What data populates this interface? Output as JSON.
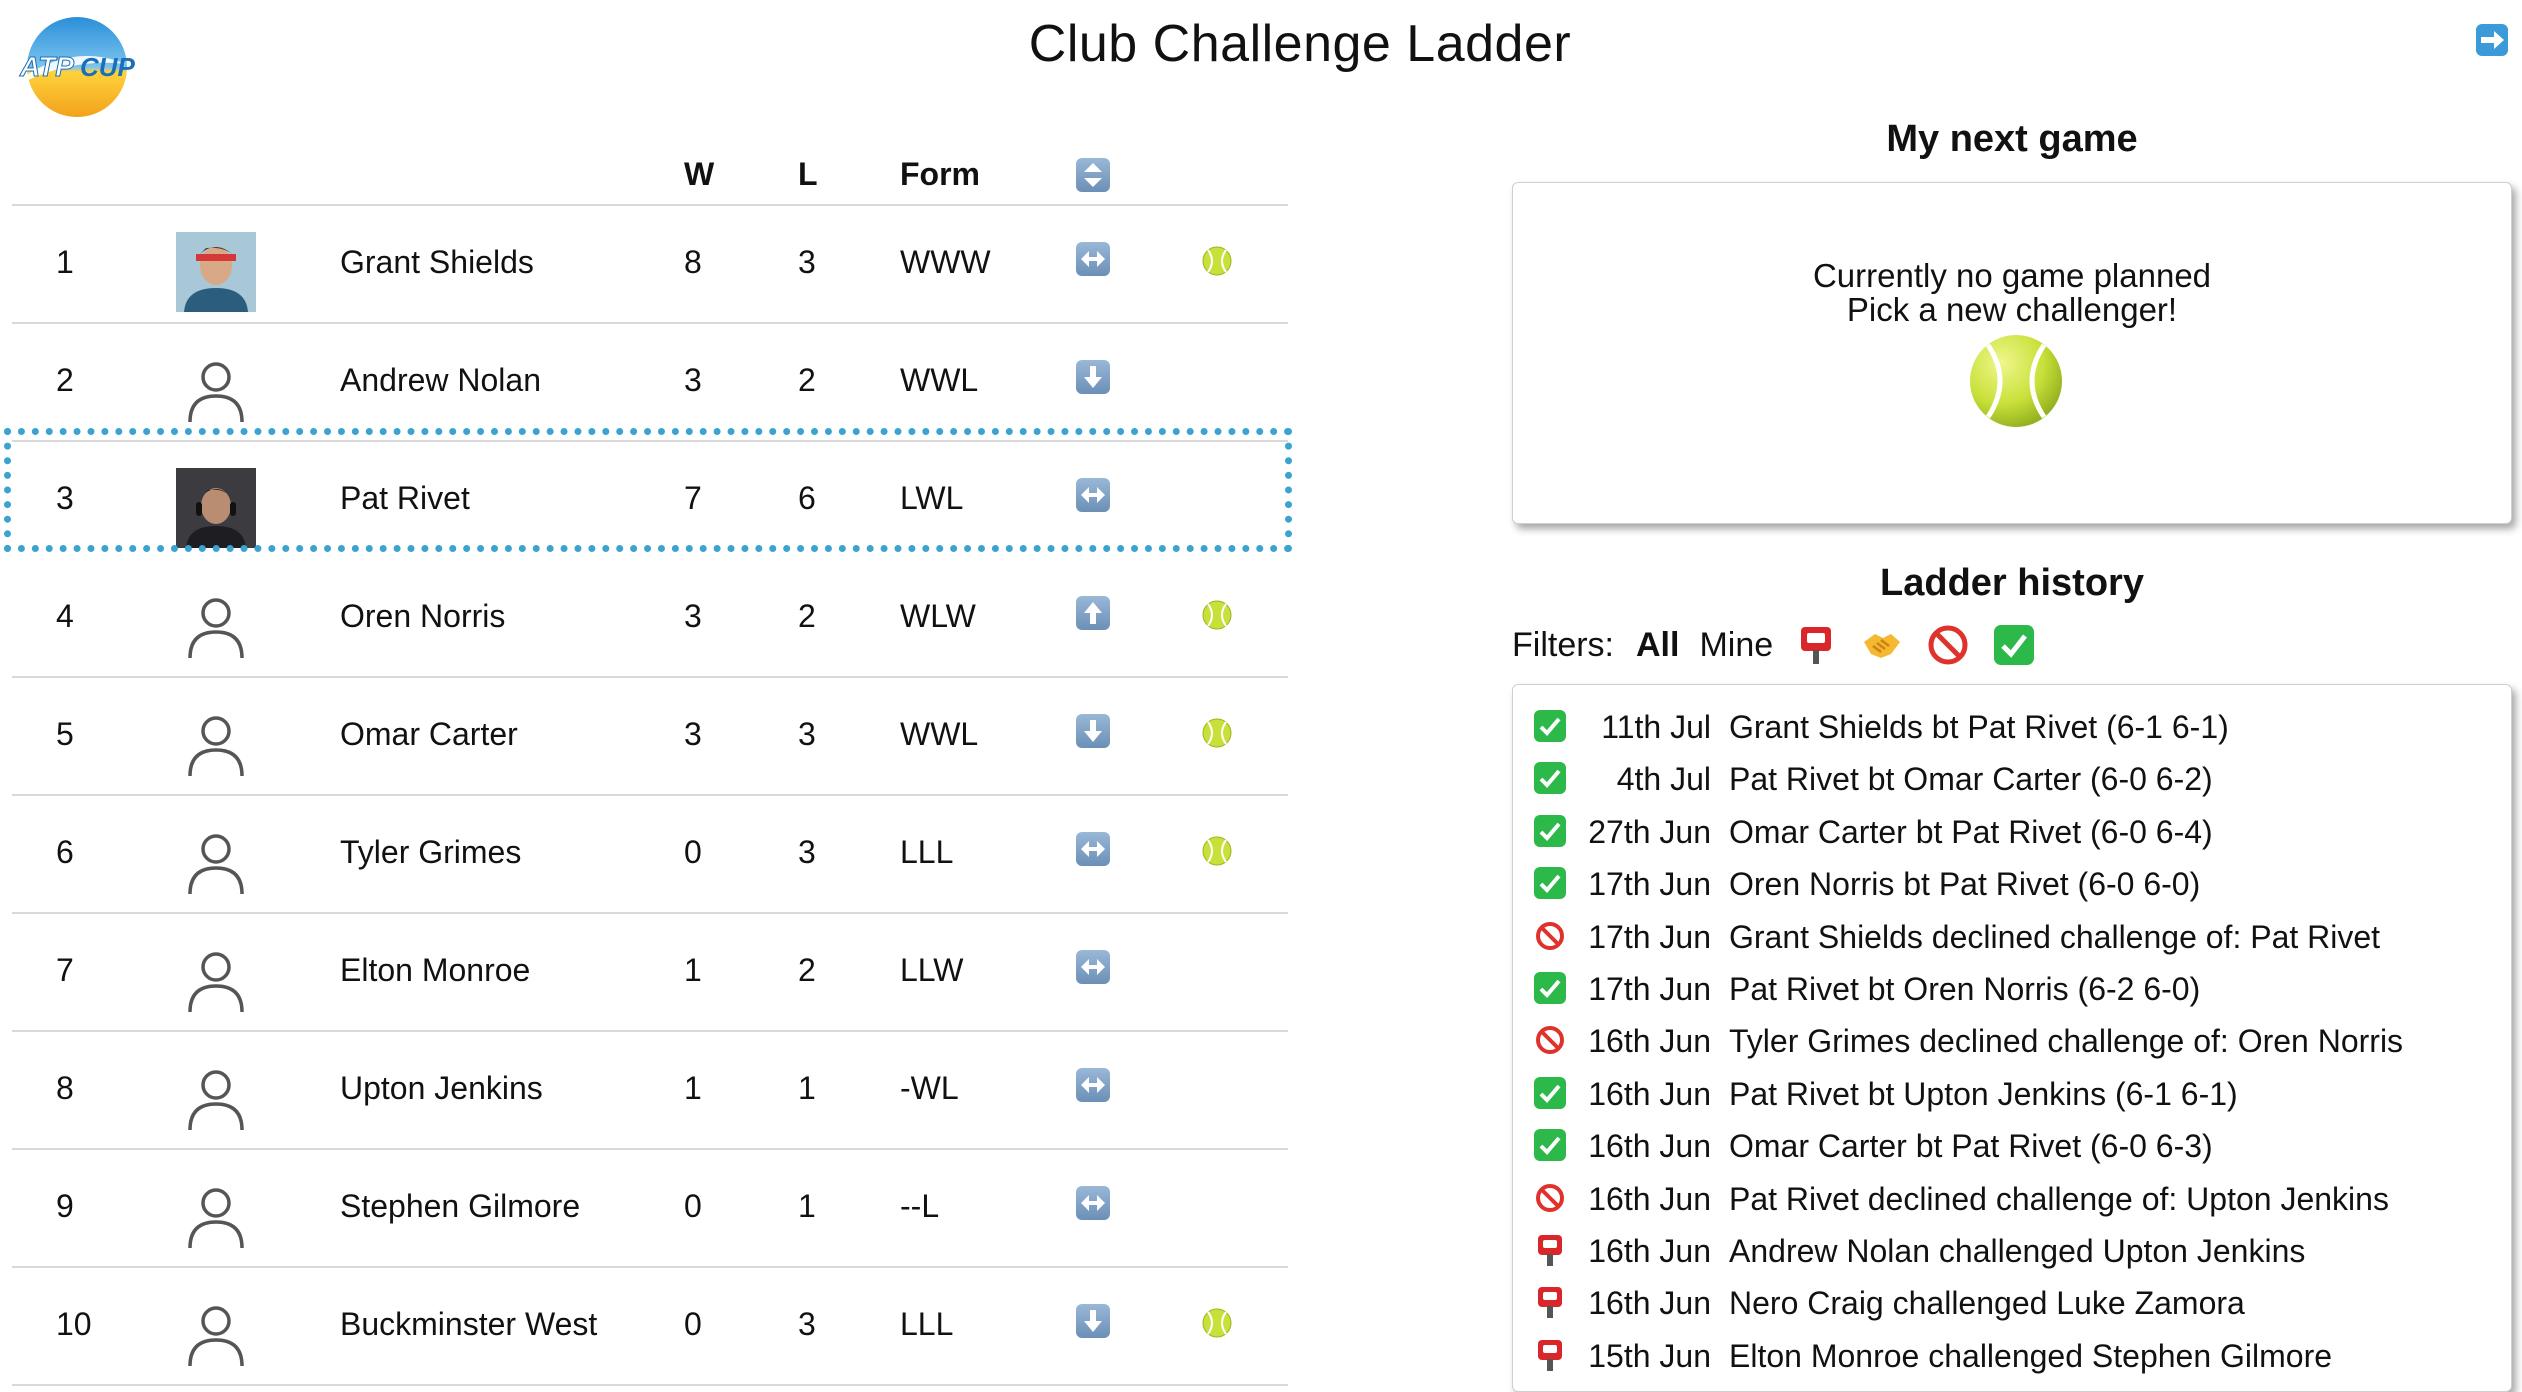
{
  "header": {
    "title": "Club Challenge Ladder",
    "logo_text_atp": "ATP",
    "logo_text_cup": "CUP"
  },
  "ladder": {
    "columns": {
      "w": "W",
      "l": "L",
      "form": "Form"
    },
    "rows": [
      {
        "rank": "1",
        "name": "Grant Shields",
        "w": "8",
        "l": "3",
        "form": "WWW",
        "move": "left-right",
        "avatar": "photo",
        "ball": true
      },
      {
        "rank": "2",
        "name": "Andrew Nolan",
        "w": "3",
        "l": "2",
        "form": "WWL",
        "move": "down",
        "avatar": "person",
        "ball": false
      },
      {
        "rank": "3",
        "name": "Pat Rivet",
        "w": "7",
        "l": "6",
        "form": "LWL",
        "move": "left-right",
        "avatar": "photo",
        "ball": false
      },
      {
        "rank": "4",
        "name": "Oren Norris",
        "w": "3",
        "l": "2",
        "form": "WLW",
        "move": "up",
        "avatar": "person",
        "ball": true
      },
      {
        "rank": "5",
        "name": "Omar Carter",
        "w": "3",
        "l": "3",
        "form": "WWL",
        "move": "down",
        "avatar": "person",
        "ball": true
      },
      {
        "rank": "6",
        "name": "Tyler Grimes",
        "w": "0",
        "l": "3",
        "form": "LLL",
        "move": "left-right",
        "avatar": "person",
        "ball": true
      },
      {
        "rank": "7",
        "name": "Elton Monroe",
        "w": "1",
        "l": "2",
        "form": "LLW",
        "move": "left-right",
        "avatar": "person",
        "ball": false
      },
      {
        "rank": "8",
        "name": "Upton Jenkins",
        "w": "1",
        "l": "1",
        "form": "-WL",
        "move": "left-right",
        "avatar": "person",
        "ball": false
      },
      {
        "rank": "9",
        "name": "Stephen Gilmore",
        "w": "0",
        "l": "1",
        "form": "--L",
        "move": "left-right",
        "avatar": "person",
        "ball": false
      },
      {
        "rank": "10",
        "name": "Buckminster West",
        "w": "0",
        "l": "3",
        "form": "LLL",
        "move": "down",
        "avatar": "person",
        "ball": true
      }
    ]
  },
  "next_game": {
    "heading": "My next game",
    "line1": "Currently no game planned",
    "line2": "Pick a new challenger!"
  },
  "history": {
    "heading": "Ladder history",
    "filters_label": "Filters:",
    "filter_all": "All",
    "filter_mine": "Mine",
    "entries": [
      {
        "type": "won",
        "date": "11th Jul",
        "text": "Grant Shields bt Pat Rivet (6-1 6-1)"
      },
      {
        "type": "won",
        "date": "4th Jul",
        "text": "Pat Rivet bt Omar Carter (6-0 6-2)"
      },
      {
        "type": "won",
        "date": "27th Jun",
        "text": "Omar Carter bt Pat Rivet (6-0 6-4)"
      },
      {
        "type": "won",
        "date": "17th Jun",
        "text": "Oren Norris bt Pat Rivet (6-0 6-0)"
      },
      {
        "type": "declined",
        "date": "17th Jun",
        "text": "Grant Shields declined challenge of: Pat Rivet"
      },
      {
        "type": "won",
        "date": "17th Jun",
        "text": "Pat Rivet bt Oren Norris (6-2 6-0)"
      },
      {
        "type": "declined",
        "date": "16th Jun",
        "text": "Tyler Grimes declined challenge of: Oren Norris"
      },
      {
        "type": "won",
        "date": "16th Jun",
        "text": "Pat Rivet bt Upton Jenkins (6-1 6-1)"
      },
      {
        "type": "won",
        "date": "16th Jun",
        "text": "Omar Carter bt Pat Rivet (6-0 6-3)"
      },
      {
        "type": "declined",
        "date": "16th Jun",
        "text": "Pat Rivet declined challenge of: Upton Jenkins"
      },
      {
        "type": "challenged",
        "date": "16th Jun",
        "text": "Andrew Nolan challenged Upton Jenkins"
      },
      {
        "type": "challenged",
        "date": "16th Jun",
        "text": "Nero Craig challenged Luke Zamora"
      },
      {
        "type": "challenged",
        "date": "15th Jun",
        "text": "Elton Monroe challenged Stephen Gilmore"
      }
    ]
  },
  "colors": {
    "highlight": "#3aa3d0",
    "ball": "#c9e03a",
    "check": "#2db84a",
    "declined": "#e0322c",
    "challenge": "#d9262b"
  }
}
